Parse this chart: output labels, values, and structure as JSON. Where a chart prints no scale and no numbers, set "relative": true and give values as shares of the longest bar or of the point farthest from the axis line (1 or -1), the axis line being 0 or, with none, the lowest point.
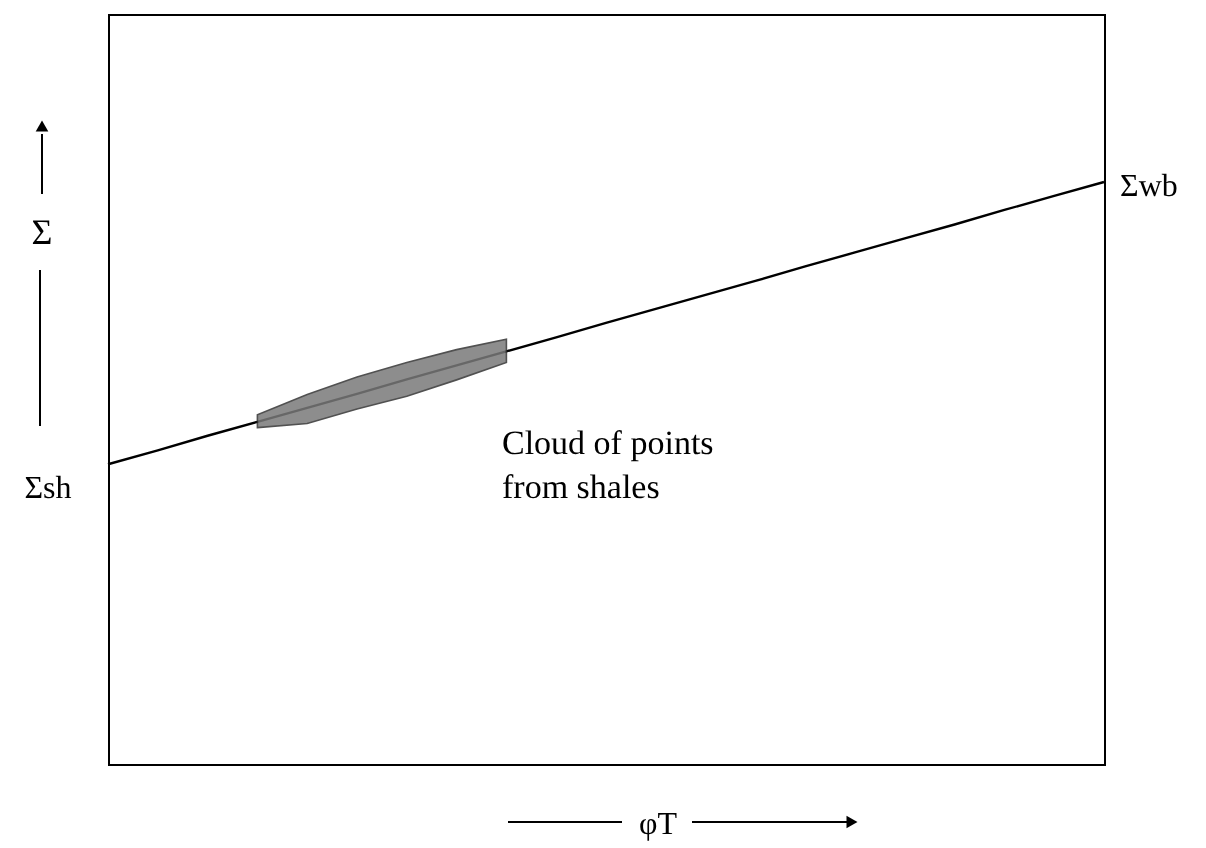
{
  "chart_data": {
    "type": "line",
    "relative": true,
    "xlabel": "φT",
    "ylabel": "Σ",
    "categories": [
      null,
      null,
      null,
      null,
      null,
      null,
      null,
      null,
      null,
      null,
      null,
      null,
      null,
      null,
      null,
      null,
      null,
      null,
      null,
      null,
      null
    ],
    "series": [
      {
        "color": "#000000",
        "values": [
          0.515,
          0.539,
          0.564,
          0.588,
          0.612,
          0.636,
          0.661,
          0.685,
          0.709,
          0.733,
          0.758,
          0.782,
          0.806,
          0.83,
          0.855,
          0.879,
          0.903,
          0.927,
          0.952,
          0.976,
          1.0
        ],
        "lower": [
          null,
          null,
          null,
          0.578,
          0.585,
          0.61,
          0.632,
          0.66,
          0.69,
          null,
          null,
          null,
          null,
          null,
          null,
          null,
          null,
          null,
          null,
          null,
          null
        ],
        "upper": [
          null,
          null,
          null,
          0.6,
          0.635,
          0.665,
          0.69,
          0.712,
          0.73,
          null,
          null,
          null,
          null,
          null,
          null,
          null,
          null,
          null,
          null,
          null,
          null
        ]
      }
    ],
    "annotations": [
      "Σsh",
      "Σwb",
      "Cloud of points from shales"
    ]
  }
}
